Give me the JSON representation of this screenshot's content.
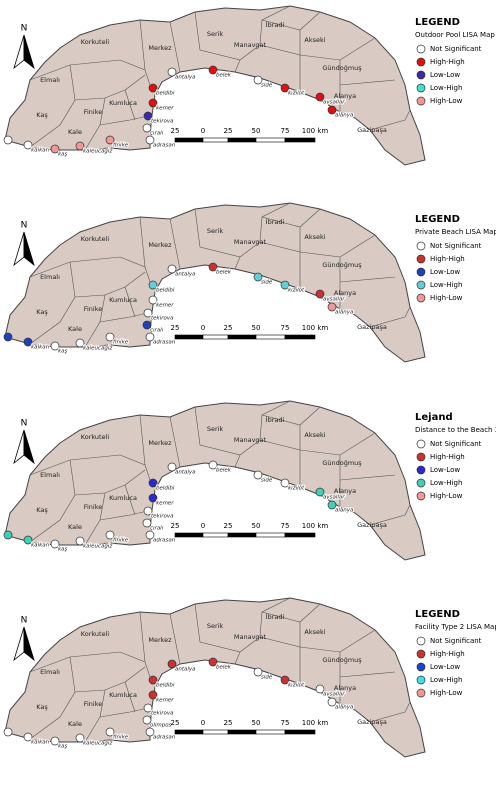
{
  "panels": [
    {
      "north": "N",
      "legend": {
        "title": "LEGEND",
        "subtitle": "Outdoor Pool LISA Map",
        "items": [
          {
            "label": "Not Significant",
            "color": "#ffffff"
          },
          {
            "label": "High-High",
            "color": "#e01010"
          },
          {
            "label": "Low-Low",
            "color": "#3a2aa8"
          },
          {
            "label": "Low-High",
            "color": "#40e0d0"
          },
          {
            "label": "High-Low",
            "color": "#f09898"
          }
        ]
      },
      "districts": [
        "Korkuteli",
        "Elmalı",
        "Kaş",
        "Finike",
        "Kumluca",
        "Kale",
        "Merkez",
        "Serik",
        "Manavgat",
        "İbradi",
        "Akseki",
        "Gündoğmuş",
        "Alanya",
        "Gazipaşa"
      ],
      "places": [
        {
          "label": "antalya",
          "class": "Not Significant"
        },
        {
          "label": "belek",
          "class": "High-High"
        },
        {
          "label": "side",
          "class": "Not Significant"
        },
        {
          "label": "kızılot",
          "class": "High-High"
        },
        {
          "label": "avsallar",
          "class": "High-High"
        },
        {
          "label": "alanya",
          "class": "High-High"
        },
        {
          "label": "beldibi",
          "class": "High-High"
        },
        {
          "label": "kemer",
          "class": "High-High"
        },
        {
          "label": "tekirova",
          "class": "Low-Low"
        },
        {
          "label": "çıralı",
          "class": "Not Significant"
        },
        {
          "label": "adrasan",
          "class": "Not Significant"
        },
        {
          "label": "finike",
          "class": "High-Low"
        },
        {
          "label": "kaleucagiz",
          "class": "High-Low"
        },
        {
          "label": "kaş",
          "class": "High-Low"
        },
        {
          "label": "kalkan",
          "class": "Not Significant"
        }
      ],
      "scale": [
        "25",
        "0",
        "25",
        "50",
        "75",
        "100 km"
      ]
    },
    {
      "north": "N",
      "legend": {
        "title": "LEGEND",
        "subtitle": "Private Beach LISA Map",
        "items": [
          {
            "label": "Not Significant",
            "color": "#ffffff"
          },
          {
            "label": "High-High",
            "color": "#c83232"
          },
          {
            "label": "Low-Low",
            "color": "#2040c0"
          },
          {
            "label": "Low-High",
            "color": "#60d0d8"
          },
          {
            "label": "High-Low",
            "color": "#f09898"
          }
        ]
      },
      "districts": [
        "Korkuteli",
        "Elmalı",
        "Kaş",
        "Finike",
        "Kumluca",
        "Kale",
        "Merkez",
        "Serik",
        "Manavgat",
        "İbradi",
        "Akseki",
        "Gündoğmuş",
        "Alanya",
        "Gazipaşa"
      ],
      "places": [
        {
          "label": "antalya",
          "class": "Not Significant"
        },
        {
          "label": "belek",
          "class": "High-High"
        },
        {
          "label": "side",
          "class": "Low-High"
        },
        {
          "label": "kızılot",
          "class": "Low-High"
        },
        {
          "label": "avsallar",
          "class": "High-High"
        },
        {
          "label": "alanya",
          "class": "High-Low"
        },
        {
          "label": "beldibi",
          "class": "Low-High"
        },
        {
          "label": "kemer",
          "class": "Not Significant"
        },
        {
          "label": "tekirova",
          "class": "Not Significant"
        },
        {
          "label": "çıralı",
          "class": "Low-Low"
        },
        {
          "label": "adrasan",
          "class": "Not Significant"
        },
        {
          "label": "finike",
          "class": "Not Significant"
        },
        {
          "label": "kaleucagiz",
          "class": "Not Significant"
        },
        {
          "label": "kaş",
          "class": "Not Significant"
        },
        {
          "label": "kalkan",
          "class": "Low-Low"
        }
      ],
      "scale": [
        "25",
        "0",
        "25",
        "50",
        "75",
        "100 km"
      ]
    },
    {
      "north": "N",
      "legend": {
        "title": "Lejand",
        "subtitle": "Distance to the Beach 3 LISA Map",
        "items": [
          {
            "label": "Not Significant",
            "color": "#ffffff"
          },
          {
            "label": "High-High",
            "color": "#c83232"
          },
          {
            "label": "Low-Low",
            "color": "#2a2ad0"
          },
          {
            "label": "Low-High",
            "color": "#40d0b8"
          },
          {
            "label": "High-Low",
            "color": "#f09898"
          }
        ]
      },
      "districts": [
        "Korkuteli",
        "Elmalı",
        "Kaş",
        "Finike",
        "Kumluca",
        "Kale",
        "Merkez",
        "Serik",
        "Manavgat",
        "İbradi",
        "Akseki",
        "Gündoğmuş",
        "Alanya",
        "Gazipaşa"
      ],
      "places": [
        {
          "label": "antalya",
          "class": "Not Significant"
        },
        {
          "label": "belek",
          "class": "Not Significant"
        },
        {
          "label": "side",
          "class": "Not Significant"
        },
        {
          "label": "kızılot",
          "class": "Not Significant"
        },
        {
          "label": "avsallar",
          "class": "Low-High"
        },
        {
          "label": "alanya",
          "class": "Low-High"
        },
        {
          "label": "beldibi",
          "class": "Low-Low"
        },
        {
          "label": "kemer",
          "class": "Low-Low"
        },
        {
          "label": "tekirova",
          "class": "Not Significant"
        },
        {
          "label": "çıralı",
          "class": "Not Significant"
        },
        {
          "label": "adrasan",
          "class": "Not Significant"
        },
        {
          "label": "finike",
          "class": "Not Significant"
        },
        {
          "label": "kaleucagiz",
          "class": "Not Significant"
        },
        {
          "label": "kaş",
          "class": "Not Significant"
        },
        {
          "label": "kalkan",
          "class": "Low-High"
        }
      ],
      "scale": [
        "25",
        "0",
        "25",
        "50",
        "75",
        "100 km"
      ]
    },
    {
      "north": "N",
      "legend": {
        "title": "LEGEND",
        "subtitle": "Facility Type 2  LISA Map",
        "items": [
          {
            "label": "Not Significant",
            "color": "#ffffff"
          },
          {
            "label": "High-High",
            "color": "#c83232"
          },
          {
            "label": "Low-Low",
            "color": "#2040d0"
          },
          {
            "label": "Low-High",
            "color": "#40e0e8"
          },
          {
            "label": "High-Low",
            "color": "#f09898"
          }
        ]
      },
      "districts": [
        "Korkuteli",
        "Elmalı",
        "Kaş",
        "Finike",
        "Kumluca",
        "Kale",
        "Merkez",
        "Serik",
        "Manavgat",
        "İbradi",
        "Akseki",
        "Gündoğmuş",
        "Alanya",
        "Gazipaşa"
      ],
      "places": [
        {
          "label": "antalya",
          "class": "High-High"
        },
        {
          "label": "belek",
          "class": "High-High"
        },
        {
          "label": "side",
          "class": "Not Significant"
        },
        {
          "label": "kızılot",
          "class": "High-High"
        },
        {
          "label": "avsallar",
          "class": "Not Significant"
        },
        {
          "label": "alanya",
          "class": "Not Significant"
        },
        {
          "label": "beldibi",
          "class": "High-High"
        },
        {
          "label": "kemer",
          "class": "High-High"
        },
        {
          "label": "tekirova",
          "class": "Not Significant"
        },
        {
          "label": "olimpos",
          "class": "Not Significant"
        },
        {
          "label": "adrasan",
          "class": "Not Significant"
        },
        {
          "label": "finike",
          "class": "Not Significant"
        },
        {
          "label": "kaleucagız",
          "class": "Not Significant"
        },
        {
          "label": "kaş",
          "class": "Not Significant"
        },
        {
          "label": "kalkan",
          "class": "Not Significant"
        }
      ],
      "scale": [
        "25",
        "0",
        "25",
        "50",
        "75",
        "100 km"
      ]
    }
  ]
}
